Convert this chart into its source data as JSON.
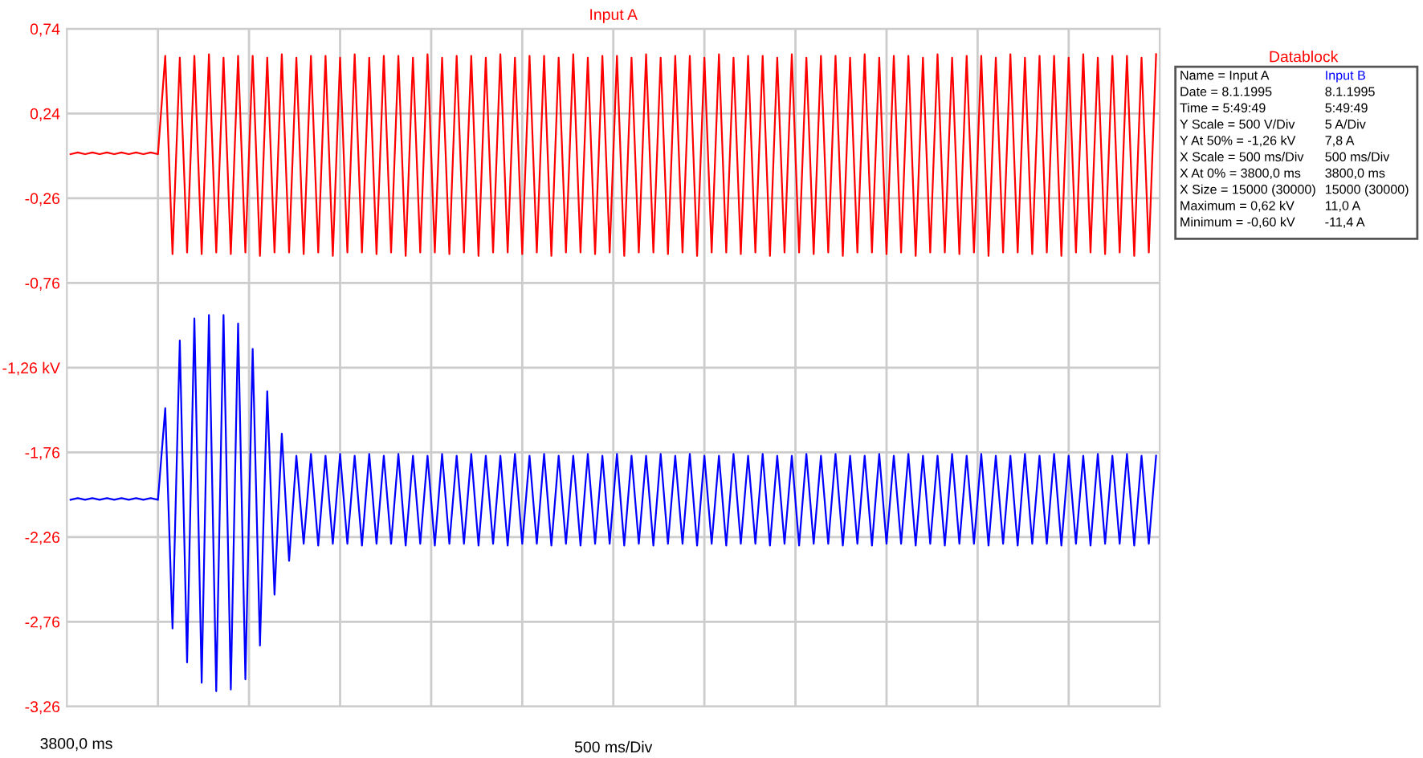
{
  "chart_data": {
    "type": "line",
    "title": "Input A",
    "xlabel": "500 ms/Div",
    "categories": [
      null,
      null,
      null,
      null,
      null,
      null,
      null,
      null,
      null,
      null,
      null,
      null,
      null,
      null,
      null,
      null,
      null,
      null,
      null,
      null,
      null,
      null,
      null,
      null,
      null,
      null,
      null,
      null,
      null,
      null,
      null,
      null,
      null,
      null,
      null,
      null,
      null,
      null,
      null,
      null,
      null,
      null,
      null,
      null,
      null,
      null,
      null,
      null,
      null,
      null,
      null,
      null,
      null,
      null,
      null,
      null,
      null,
      null,
      null,
      null,
      null,
      null,
      null,
      null,
      null,
      null,
      null,
      null,
      null,
      null,
      null,
      null,
      null,
      null,
      null,
      null,
      null,
      null,
      null,
      null,
      null,
      null,
      null,
      null,
      null,
      null,
      null,
      null,
      null,
      null,
      null,
      null,
      null,
      null,
      null,
      null,
      null,
      null,
      null,
      null,
      null,
      null,
      null,
      null,
      null,
      null,
      null,
      null,
      null,
      null,
      null,
      null,
      null,
      null,
      null,
      null,
      null,
      null,
      null,
      null,
      null,
      null,
      null,
      null,
      null,
      null,
      null,
      null,
      null,
      null,
      null,
      null,
      null,
      null,
      null,
      null,
      null,
      null,
      null,
      null,
      null,
      null,
      null,
      null,
      null,
      null,
      null,
      null,
      null,
      null
    ],
    "series": [
      {
        "color": "#ff0000",
        "values": [
          0.0,
          0.01,
          0.0,
          0.01,
          0.0,
          0.01,
          0.0,
          0.01,
          0.0,
          0.01,
          0.0,
          0.01,
          0.0,
          0.58,
          -0.59,
          0.57,
          -0.58,
          0.58,
          -0.59,
          0.59,
          -0.58,
          0.57,
          -0.59,
          0.58,
          -0.58,
          0.58,
          -0.6,
          0.57,
          -0.58,
          0.59,
          -0.58,
          0.57,
          -0.59,
          0.58,
          -0.58,
          0.58,
          -0.6,
          0.57,
          -0.58,
          0.59,
          -0.58,
          0.57,
          -0.59,
          0.58,
          -0.58,
          0.58,
          -0.6,
          0.57,
          -0.58,
          0.59,
          -0.58,
          0.57,
          -0.59,
          0.58,
          -0.58,
          0.58,
          -0.6,
          0.57,
          -0.58,
          0.59,
          -0.58,
          0.57,
          -0.59,
          0.58,
          -0.58,
          0.58,
          -0.6,
          0.57,
          -0.58,
          0.59,
          -0.58,
          0.57,
          -0.59,
          0.58,
          -0.58,
          0.58,
          -0.6,
          0.57,
          -0.58,
          0.59,
          -0.58,
          0.57,
          -0.59,
          0.58,
          -0.58,
          0.58,
          -0.6,
          0.57,
          -0.58,
          0.59,
          -0.58,
          0.57,
          -0.59,
          0.58,
          -0.58,
          0.58,
          -0.6,
          0.57,
          -0.58,
          0.59,
          -0.58,
          0.57,
          -0.59,
          0.58,
          -0.58,
          0.58,
          -0.6,
          0.57,
          -0.58,
          0.59,
          -0.58,
          0.57,
          -0.59,
          0.58,
          -0.58,
          0.58,
          -0.6,
          0.57,
          -0.58,
          0.59,
          -0.58,
          0.57,
          -0.59,
          0.58,
          -0.58,
          0.58,
          -0.6,
          0.57,
          -0.58,
          0.59,
          -0.58,
          0.57,
          -0.59,
          0.58,
          -0.58,
          0.58,
          -0.6,
          0.57,
          -0.58,
          0.59,
          -0.58,
          0.57,
          -0.59,
          0.58,
          -0.58,
          0.58,
          -0.6,
          0.57,
          -0.58,
          0.59
        ]
      },
      {
        "color": "#0000ff",
        "values": [
          -2.04,
          -2.03,
          -2.04,
          -2.03,
          -2.04,
          -2.03,
          -2.04,
          -2.03,
          -2.04,
          -2.03,
          -2.04,
          -2.03,
          -2.04,
          -1.5,
          -2.8,
          -1.1,
          -3.0,
          -0.97,
          -3.12,
          -0.95,
          -3.17,
          -0.95,
          -3.16,
          -1.0,
          -3.1,
          -1.15,
          -2.9,
          -1.4,
          -2.6,
          -1.65,
          -2.4,
          -1.78,
          -2.3,
          -1.77,
          -2.31,
          -1.78,
          -2.3,
          -1.77,
          -2.3,
          -1.78,
          -2.31,
          -1.77,
          -2.3,
          -1.78,
          -2.3,
          -1.77,
          -2.31,
          -1.78,
          -2.3,
          -1.78,
          -2.31,
          -1.77,
          -2.3,
          -1.78,
          -2.3,
          -1.77,
          -2.31,
          -1.78,
          -2.3,
          -1.78,
          -2.31,
          -1.77,
          -2.3,
          -1.78,
          -2.3,
          -1.77,
          -2.31,
          -1.78,
          -2.3,
          -1.78,
          -2.31,
          -1.77,
          -2.3,
          -1.78,
          -2.3,
          -1.77,
          -2.31,
          -1.78,
          -2.3,
          -1.78,
          -2.31,
          -1.77,
          -2.3,
          -1.78,
          -2.3,
          -1.77,
          -2.31,
          -1.78,
          -2.3,
          -1.78,
          -2.31,
          -1.77,
          -2.3,
          -1.78,
          -2.3,
          -1.77,
          -2.31,
          -1.78,
          -2.3,
          -1.78,
          -2.31,
          -1.77,
          -2.3,
          -1.78,
          -2.3,
          -1.77,
          -2.31,
          -1.78,
          -2.3,
          -1.78,
          -2.31,
          -1.77,
          -2.3,
          -1.78,
          -2.3,
          -1.77,
          -2.31,
          -1.78,
          -2.3,
          -1.78,
          -2.31,
          -1.77,
          -2.3,
          -1.78,
          -2.3,
          -1.77,
          -2.31,
          -1.78,
          -2.3,
          -1.78,
          -2.31,
          -1.77,
          -2.3,
          -1.78,
          -2.3,
          -1.77,
          -2.31,
          -1.78,
          -2.3,
          -1.78,
          -2.31,
          -1.77,
          -2.3,
          -1.78,
          -2.3,
          -1.77,
          -2.31,
          -1.78,
          -2.3,
          -1.78
        ]
      }
    ],
    "ylim": [
      -3.26,
      0.74
    ],
    "yticks": [
      {
        "value": 0.74,
        "label": "0,74"
      },
      {
        "value": 0.24,
        "label": "0,24"
      },
      {
        "value": -0.26,
        "label": "-0,26"
      },
      {
        "value": -0.76,
        "label": "-0,76"
      },
      {
        "value": -1.26,
        "label": "-1,26 kV"
      },
      {
        "value": -1.76,
        "label": "-1,76"
      },
      {
        "value": -2.26,
        "label": "-2,26"
      },
      {
        "value": -2.76,
        "label": "-2,76"
      },
      {
        "value": -3.26,
        "label": "-3,26"
      }
    ],
    "grid": true,
    "line_style": "solid",
    "marker": "none",
    "annotations": [
      "3800,0 ms",
      "Datablock",
      "Name = Input A",
      "Input B",
      "Date = 8.1.1995",
      "8.1.1995",
      "Time = 5:49:49",
      "5:49:49",
      "Y Scale = 500 V/Div",
      "5 A/Div",
      "Y At 50% = -1,26 kV",
      "7,8 A",
      "X Scale = 500 ms/Div",
      "500 ms/Div",
      "X At 0% = 3800,0 ms",
      "3800,0 ms",
      "X Size = 15000 (30000)",
      "15000 (30000)",
      "Maximum = 0,62 kV",
      "11,0 A",
      "Minimum = -0,60 kV",
      "-11,4 A"
    ]
  }
}
